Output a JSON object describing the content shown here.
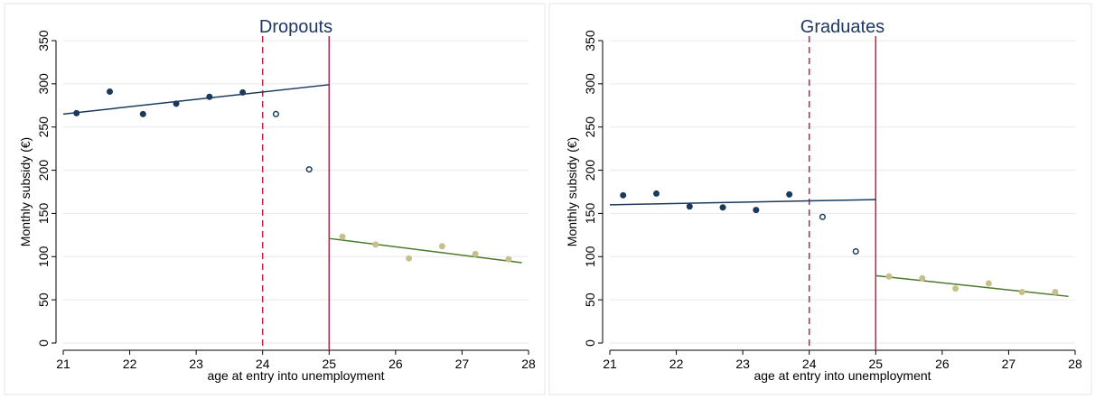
{
  "chart_data": [
    {
      "type": "scatter",
      "title": "Dropouts",
      "xlabel": "age at entry into unemployment",
      "ylabel": "Monthly subsidy (€)",
      "xlim": [
        21,
        28
      ],
      "ylim": [
        0,
        350
      ],
      "xticks": [
        21,
        22,
        23,
        24,
        25,
        26,
        27,
        28
      ],
      "yticks": [
        0,
        50,
        100,
        150,
        200,
        250,
        300,
        350
      ],
      "grid": true,
      "vlines": [
        {
          "x": 24,
          "style": "dashed",
          "color": "#c0224a"
        },
        {
          "x": 25,
          "style": "solid",
          "color": "#c0224a"
        }
      ],
      "series": [
        {
          "marker": "filled",
          "color": "#1a3a5c",
          "points": [
            [
              21.2,
              266
            ],
            [
              21.7,
              291
            ],
            [
              22.2,
              265
            ],
            [
              22.7,
              277
            ],
            [
              23.2,
              285
            ],
            [
              23.7,
              290
            ]
          ]
        },
        {
          "marker": "hollow",
          "color": "#1a3a5c",
          "points": [
            [
              24.2,
              265
            ],
            [
              24.7,
              201
            ]
          ]
        },
        {
          "marker": "filled",
          "color": "#c8c08a",
          "points": [
            [
              25.2,
              123
            ],
            [
              25.7,
              114
            ],
            [
              26.2,
              98
            ],
            [
              26.7,
              112
            ],
            [
              27.2,
              103
            ],
            [
              27.7,
              97
            ]
          ]
        }
      ],
      "fit_lines": [
        {
          "color": "#1a3a5c",
          "from": [
            21,
            265
          ],
          "to": [
            25,
            299
          ]
        },
        {
          "color": "#4a7a2a",
          "from": [
            25,
            121
          ],
          "to": [
            27.9,
            93
          ]
        }
      ]
    },
    {
      "type": "scatter",
      "title": "Graduates",
      "xlabel": "age at entry into unemployment",
      "ylabel": "Monthly subsidy (€)",
      "xlim": [
        21,
        28
      ],
      "ylim": [
        0,
        350
      ],
      "xticks": [
        21,
        22,
        23,
        24,
        25,
        26,
        27,
        28
      ],
      "yticks": [
        0,
        50,
        100,
        150,
        200,
        250,
        300,
        350
      ],
      "grid": true,
      "vlines": [
        {
          "x": 24,
          "style": "dashed",
          "color": "#c0224a"
        },
        {
          "x": 25,
          "style": "solid",
          "color": "#c0224a"
        }
      ],
      "series": [
        {
          "marker": "filled",
          "color": "#1a3a5c",
          "points": [
            [
              21.2,
              171
            ],
            [
              21.7,
              173
            ],
            [
              22.2,
              158
            ],
            [
              22.7,
              157
            ],
            [
              23.2,
              154
            ],
            [
              23.7,
              172
            ]
          ]
        },
        {
          "marker": "hollow",
          "color": "#1a3a5c",
          "points": [
            [
              24.2,
              146
            ],
            [
              24.7,
              106
            ]
          ]
        },
        {
          "marker": "filled",
          "color": "#c8c08a",
          "points": [
            [
              25.2,
              77
            ],
            [
              25.7,
              75
            ],
            [
              26.2,
              63
            ],
            [
              26.7,
              69
            ],
            [
              27.2,
              59
            ],
            [
              27.7,
              59
            ]
          ]
        }
      ],
      "fit_lines": [
        {
          "color": "#1a3a5c",
          "from": [
            21,
            160
          ],
          "to": [
            25,
            166
          ]
        },
        {
          "color": "#4a7a2a",
          "from": [
            25,
            78
          ],
          "to": [
            27.9,
            54
          ]
        }
      ]
    }
  ]
}
